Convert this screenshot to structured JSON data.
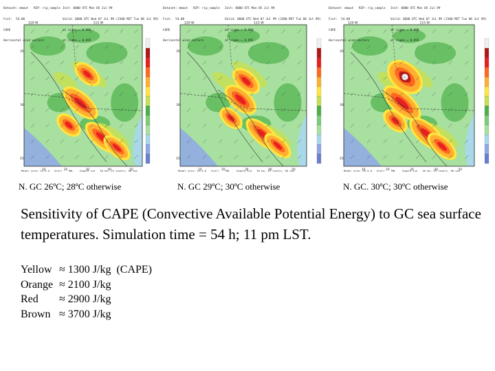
{
  "colors": {
    "map_bg": "#a8e0a0",
    "contour_scale": [
      "#6b7fd0",
      "#8fa8e6",
      "#a8d8f0",
      "#a8e0a0",
      "#7dcc78",
      "#4fb04a",
      "#c8e050",
      "#ffe640",
      "#ffb030",
      "#ff6820",
      "#e82020",
      "#b01818",
      "#f0f0f0"
    ]
  },
  "panels": [
    {
      "header_left": [
        "Dataset: mmout   RIP: rip_sample",
        "Fcst:  54.00",
        "CAPE",
        "Horizontal wind vectors"
      ],
      "header_right": [
        "Init: 0000 UTC Mon 05 Jul 99",
        "Valid: 0600 UTC Wed 07 Jul 99 (2300 MST Tue 06 Jul 99)",
        "at sigma = 0.980",
        "at sigma = 0.995"
      ],
      "lon_labels": [
        "120 W",
        "115 W"
      ],
      "lat_labels": [
        "35",
        "30",
        "25"
      ],
      "x_ticks": [
        "10",
        "20",
        "30",
        "40",
        "50"
      ],
      "footer": "Model info: V3.5.0   Grell    PBL    Simple ice   30 km, 23 levels, 90 sec",
      "caption": "N. GC 26ºC; 28ºC otherwise",
      "blobs": [
        [
          122,
          108,
          16,
          9
        ],
        [
          112,
          150,
          26,
          11
        ],
        [
          95,
          182,
          15,
          9
        ],
        [
          143,
          200,
          24,
          10
        ],
        [
          165,
          215,
          18,
          8
        ]
      ]
    },
    {
      "header_left": [
        "Dataset: mmout   RIP: rip_sample",
        "Fcst:  54.00",
        "CAPE",
        "Horizontal wind vectors"
      ],
      "header_right": [
        "Init: 0000 UTC Mon 05 Jul 99",
        "Valid: 0600 UTC Wed 07 Jul 99 (2300 MST Tue 06 Jul 99)",
        "at sigma = 0.980",
        "at sigma = 0.995"
      ],
      "lon_labels": [
        "120 W",
        "115 W"
      ],
      "lat_labels": [
        "35",
        "30",
        "25"
      ],
      "x_ticks": [
        "10",
        "20",
        "30",
        "40",
        "50"
      ],
      "footer": "Model info: V3.5.0   Grell    PBL    Simple ice   30 km, 23 levels, 90 sec",
      "caption": "N. GC 29ºC; 30ºC otherwise",
      "blobs": [
        [
          120,
          118,
          18,
          10
        ],
        [
          112,
          145,
          22,
          11
        ],
        [
          98,
          172,
          14,
          8
        ],
        [
          145,
          196,
          26,
          10
        ],
        [
          166,
          212,
          18,
          8
        ]
      ]
    },
    {
      "header_left": [
        "Dataset: mmout   RIP: rip_sample",
        "Fcst:  54.00",
        "CAPE",
        "Horizontal wind vectors"
      ],
      "header_right": [
        "Init: 0000 UTC Mon 05 Jul 99",
        "Valid: 0600 UTC Wed 07 Jul 99 (2300 MST Tue 06 Jul 99)",
        "at sigma = 0.980",
        "at sigma = 0.995"
      ],
      "lon_labels": [
        "120 W",
        "115 W"
      ],
      "lat_labels": [
        "35",
        "30",
        "25"
      ],
      "x_ticks": [
        "10",
        "20",
        "30",
        "40",
        "50"
      ],
      "footer": "Model info: V3.5.0   Grell    PBL    Simple ice   30 km, 23 levels, 90 sec",
      "caption": "N. GC. 30ºC; 30ºC otherwise",
      "blobs": [
        [
          110,
          112,
          24,
          16
        ],
        [
          106,
          150,
          28,
          12
        ],
        [
          96,
          176,
          15,
          9
        ],
        [
          142,
          195,
          26,
          11
        ],
        [
          164,
          213,
          20,
          9
        ]
      ]
    }
  ],
  "main_text": "Sensitivity of CAPE (Convective Available Potential Energy) to GC sea surface temperatures.  Simulation time = 54 h; 11 pm LST.",
  "legend": [
    {
      "name": "Yellow",
      "value": "≈ 1300 J/kg",
      "note": "(CAPE)"
    },
    {
      "name": "Orange",
      "value": "≈ 2100 J/kg",
      "note": ""
    },
    {
      "name": "Red",
      "value": "≈ 2900 J/kg",
      "note": ""
    },
    {
      "name": "Brown",
      "value": "≈ 3700 J/kg",
      "note": ""
    }
  ]
}
